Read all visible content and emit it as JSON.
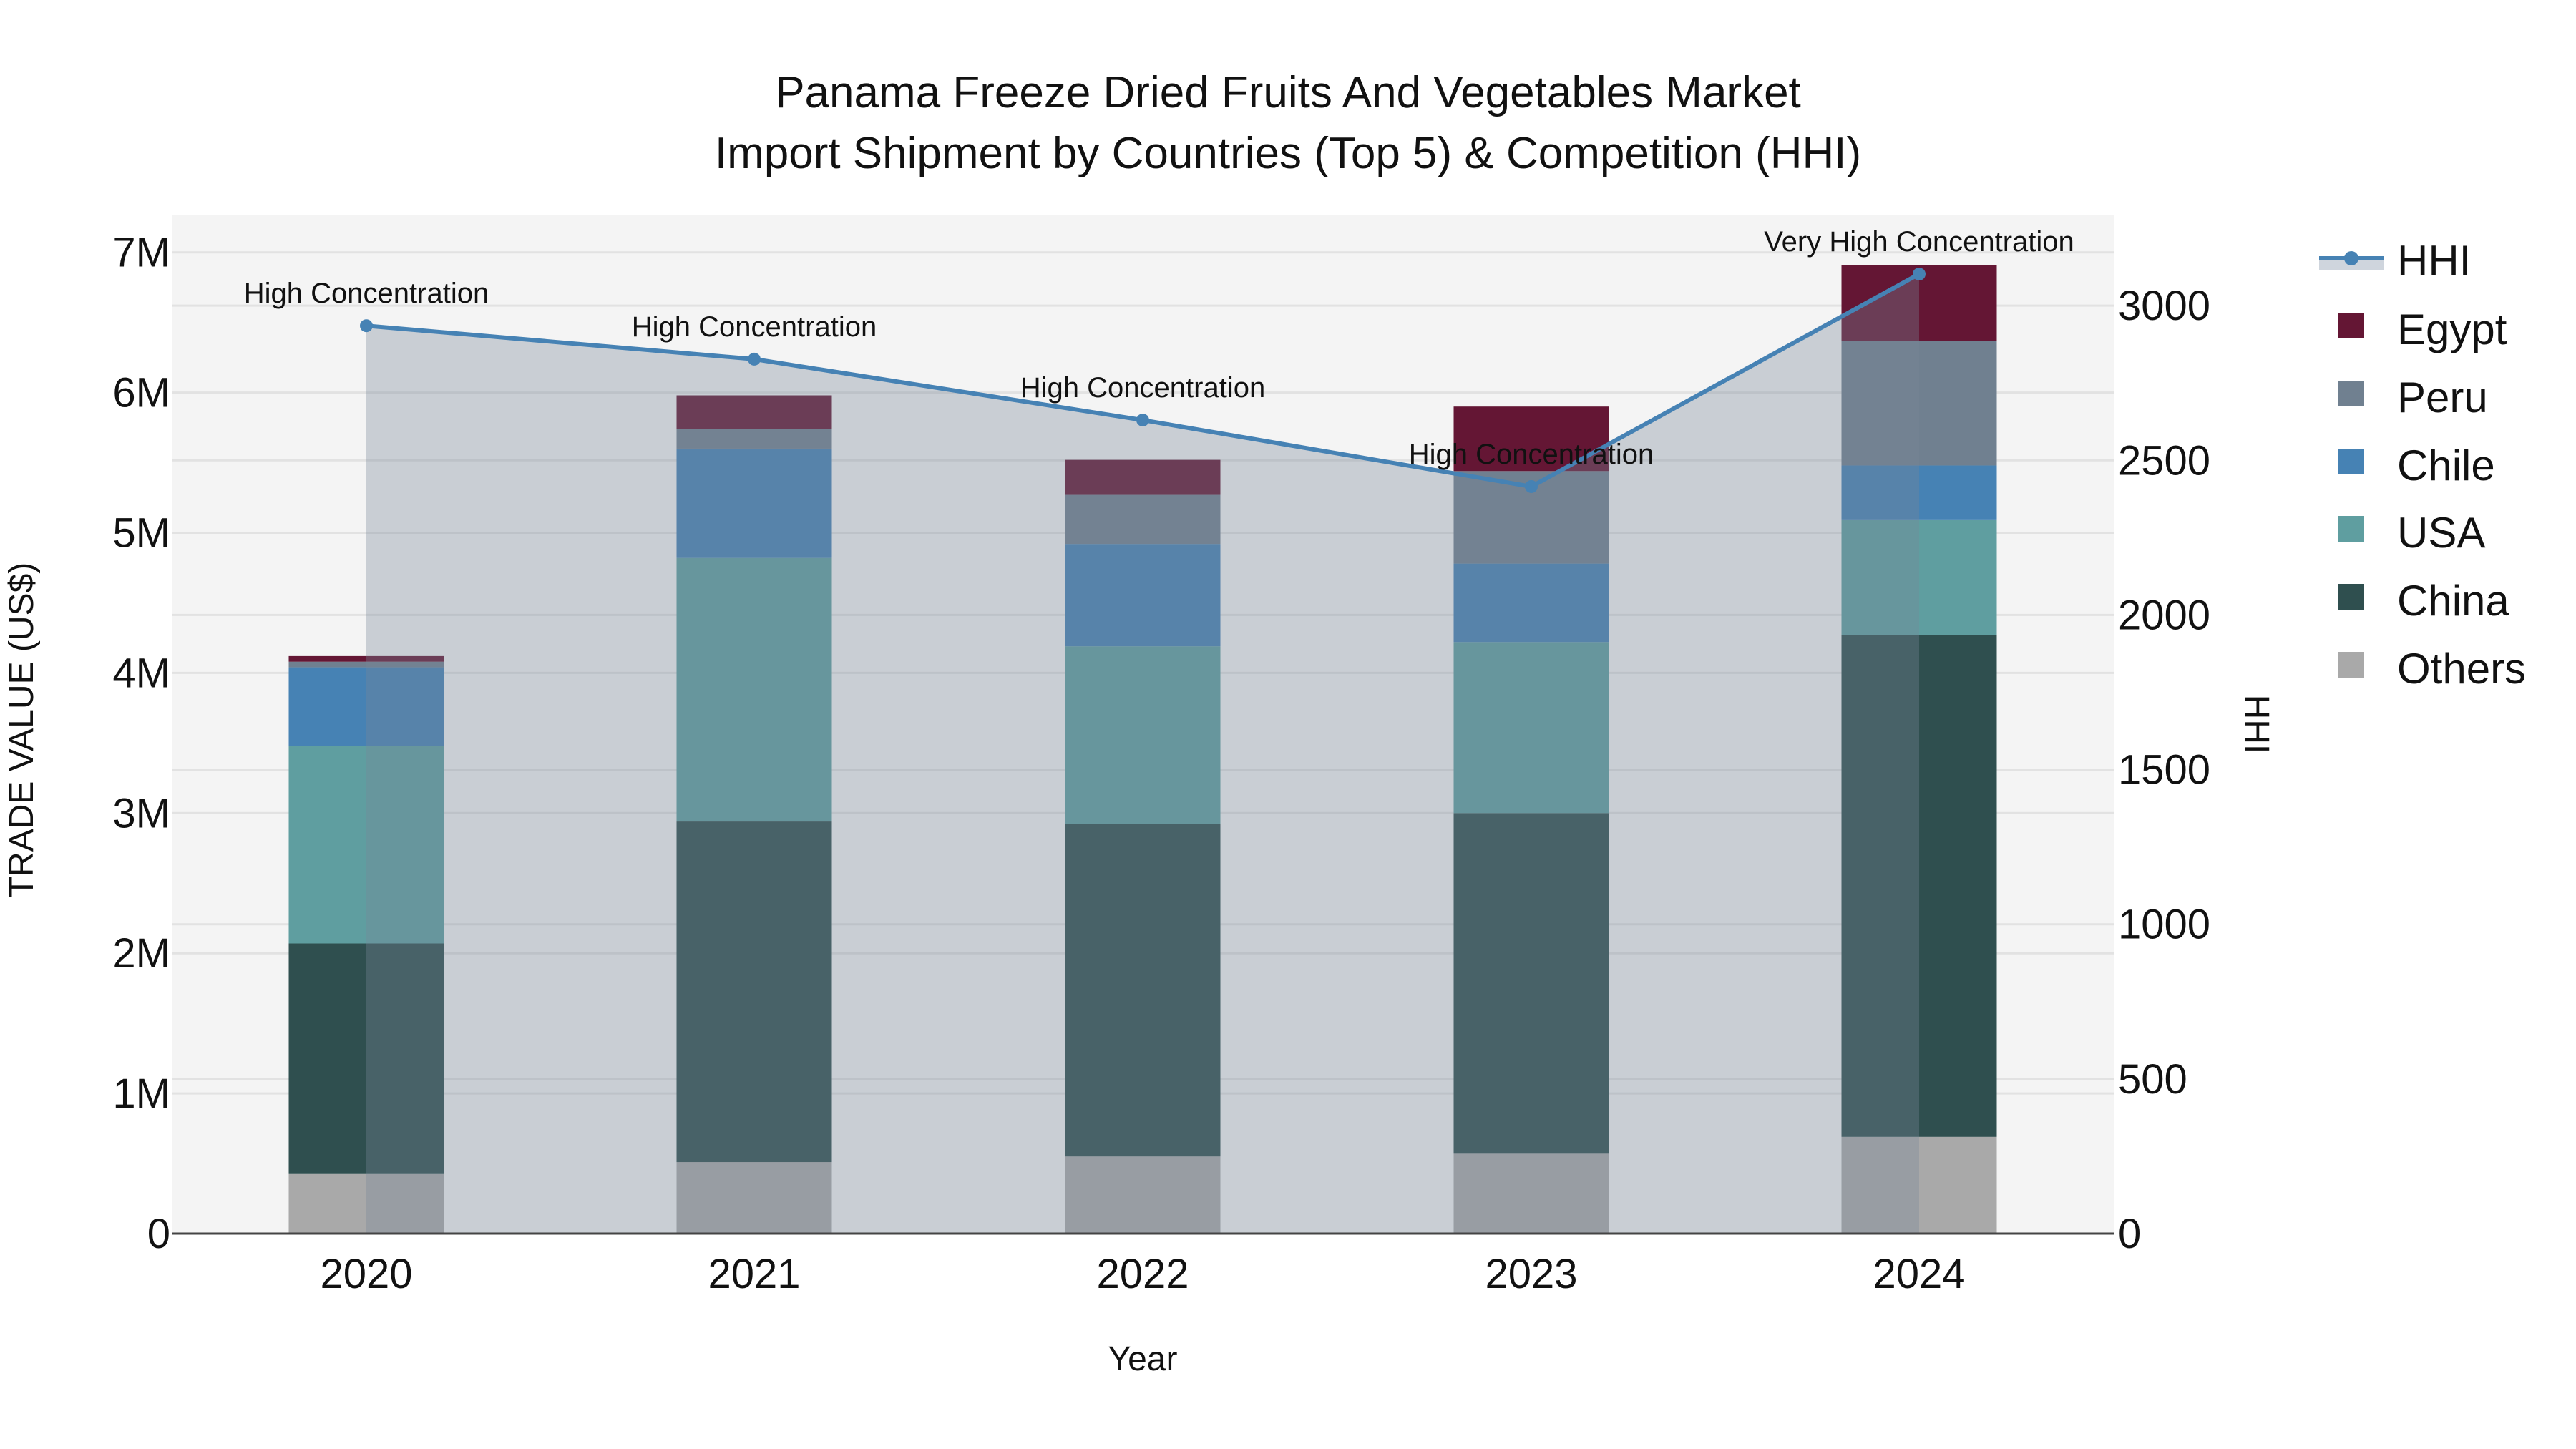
{
  "title": {
    "line1": "Panama Freeze Dried Fruits And Vegetables Market",
    "line2": "Import Shipment by Countries (Top 5) & Competition (HHI)"
  },
  "axes": {
    "x_title": "Year",
    "y_left_title": "TRADE VALUE (US$)",
    "y_right_title": "HHI",
    "y_left_ticks": [
      "0",
      "1M",
      "2M",
      "3M",
      "4M",
      "5M",
      "6M",
      "7M"
    ],
    "y_right_ticks": [
      "0",
      "500",
      "1000",
      "1500",
      "2000",
      "2500",
      "3000"
    ]
  },
  "legend": [
    {
      "label": "HHI",
      "type": "line",
      "color": "#4682b4"
    },
    {
      "label": "Egypt",
      "type": "bar",
      "color": "#641634"
    },
    {
      "label": "Peru",
      "type": "bar",
      "color": "#708090"
    },
    {
      "label": "Chile",
      "type": "bar",
      "color": "#4682b4"
    },
    {
      "label": "USA",
      "type": "bar",
      "color": "#5f9ea0"
    },
    {
      "label": "China",
      "type": "bar",
      "color": "#2f4f4f"
    },
    {
      "label": "Others",
      "type": "bar",
      "color": "#a9a9a9"
    }
  ],
  "chart_data": {
    "type": "bar",
    "stacked": true,
    "title": "Panama Freeze Dried Fruits And Vegetables Market\nImport Shipment by Countries (Top 5) & Competition (HHI)",
    "xlabel": "Year",
    "ylabel": "TRADE VALUE (US$)",
    "y2label": "HHI",
    "categories": [
      "2020",
      "2021",
      "2022",
      "2023",
      "2024"
    ],
    "series": [
      {
        "name": "Others",
        "color": "#a9a9a9",
        "values": [
          430000,
          510000,
          550000,
          570000,
          690000
        ]
      },
      {
        "name": "China",
        "color": "#2f4f4f",
        "values": [
          1640000,
          2430000,
          2370000,
          2430000,
          3580000
        ]
      },
      {
        "name": "USA",
        "color": "#5f9ea0",
        "values": [
          1410000,
          1880000,
          1270000,
          1220000,
          820000
        ]
      },
      {
        "name": "Chile",
        "color": "#4682b4",
        "values": [
          560000,
          780000,
          730000,
          560000,
          390000
        ]
      },
      {
        "name": "Peru",
        "color": "#708090",
        "values": [
          40000,
          140000,
          350000,
          660000,
          890000
        ]
      },
      {
        "name": "Egypt",
        "color": "#641634",
        "values": [
          40000,
          240000,
          250000,
          460000,
          540000
        ]
      }
    ],
    "line_series": {
      "name": "HHI",
      "axis": "right",
      "type": "line+area",
      "color": "#4682b4",
      "values": [
        2935,
        2827,
        2630,
        2415,
        3102
      ],
      "annotations": [
        "High Concentration",
        "High Concentration",
        "High Concentration",
        "High Concentration",
        "Very High Concentration"
      ]
    },
    "ylim": [
      0,
      7270000
    ],
    "y2lim": [
      0,
      3294
    ],
    "grid": true,
    "legend_position": "right"
  }
}
